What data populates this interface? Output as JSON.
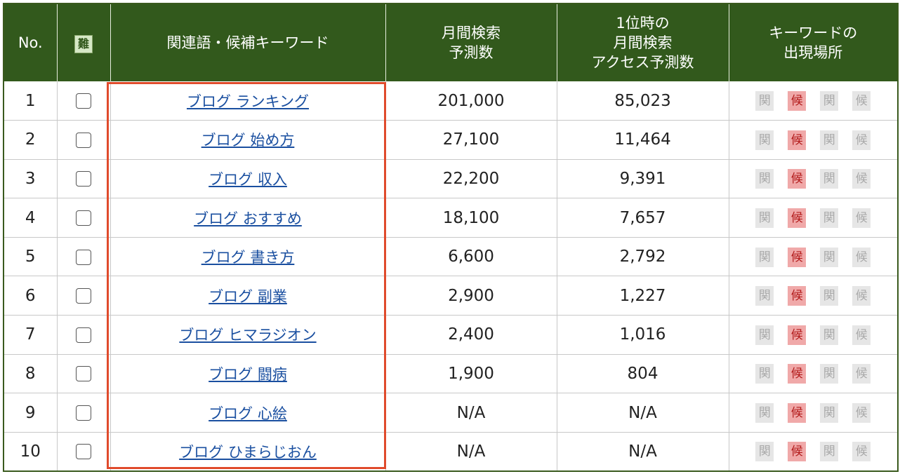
{
  "table": {
    "headers": {
      "no": "No.",
      "difficulty_icon_text": "難",
      "keyword": "関連語・候補キーワード",
      "monthly_search": [
        "月間検索",
        "予測数"
      ],
      "top_access": [
        "1位時の",
        "月間検索",
        "アクセス予測数"
      ],
      "appearance": [
        "キーワードの",
        "出現場所"
      ]
    },
    "rows": [
      {
        "no": "1",
        "keyword": "ブログ ランキング",
        "search": "201,000",
        "access": "85,023"
      },
      {
        "no": "2",
        "keyword": "ブログ 始め方",
        "search": "27,100",
        "access": "11,464"
      },
      {
        "no": "3",
        "keyword": "ブログ 収入",
        "search": "22,200",
        "access": "9,391"
      },
      {
        "no": "4",
        "keyword": "ブログ おすすめ",
        "search": "18,100",
        "access": "7,657"
      },
      {
        "no": "5",
        "keyword": "ブログ 書き方",
        "search": "6,600",
        "access": "2,792"
      },
      {
        "no": "6",
        "keyword": "ブログ 副業",
        "search": "2,900",
        "access": "1,227"
      },
      {
        "no": "7",
        "keyword": "ブログ ヒマラジオン",
        "search": "2,400",
        "access": "1,016"
      },
      {
        "no": "8",
        "keyword": "ブログ 闘病",
        "search": "1,900",
        "access": "804"
      },
      {
        "no": "9",
        "keyword": "ブログ 心絵",
        "search": "N/A",
        "access": "N/A"
      },
      {
        "no": "10",
        "keyword": "ブログ ひまらじおん",
        "search": "N/A",
        "access": "N/A"
      }
    ],
    "badges": [
      {
        "label": "関",
        "active": false
      },
      {
        "label": "候",
        "active": true
      },
      {
        "label": "関",
        "active": false
      },
      {
        "label": "候",
        "active": false
      }
    ]
  },
  "colors": {
    "header_bg": "#32591c",
    "link": "#1a4fa0",
    "highlight": "#e04b2c",
    "badge_active_bg": "#f0a9a9",
    "badge_active_text": "#b21a1a"
  }
}
